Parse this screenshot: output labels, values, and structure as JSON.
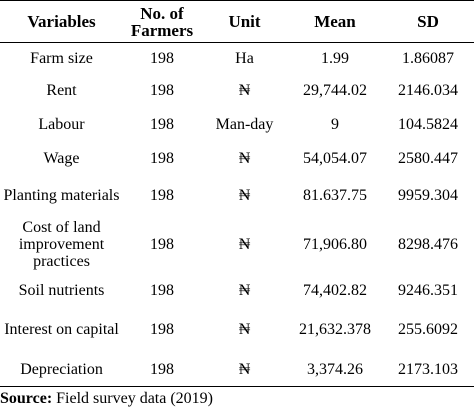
{
  "table": {
    "headers": [
      "Variables",
      "No. of Farmers",
      "Unit",
      "Mean",
      "SD"
    ],
    "rows": [
      {
        "variable": "Farm size",
        "farmers": "198",
        "unit": "Ha",
        "mean": "1.99",
        "sd": "1.86087"
      },
      {
        "variable": "Rent",
        "farmers": "198",
        "unit": "₦",
        "mean": "29,744.02",
        "sd": "2146.034"
      },
      {
        "variable": "Labour",
        "farmers": "198",
        "unit": "Man-day",
        "mean": "9",
        "sd": "104.5824"
      },
      {
        "variable": "Wage",
        "farmers": "198",
        "unit": "₦",
        "mean": "54,054.07",
        "sd": "2580.447"
      },
      {
        "variable": "Planting materials",
        "farmers": "198",
        "unit": "₦",
        "mean": "81.637.75",
        "sd": "9959.304"
      },
      {
        "variable": "Cost of land improvement practices",
        "farmers": "198",
        "unit": "₦",
        "mean": "71,906.80",
        "sd": "8298.476"
      },
      {
        "variable": "Soil nutrients",
        "farmers": "198",
        "unit": "₦",
        "mean": "74,402.82",
        "sd": "9246.351"
      },
      {
        "variable": "Interest on capital",
        "farmers": "198",
        "unit": "₦",
        "mean": "21,632.378",
        "sd": "255.6092"
      },
      {
        "variable": "Depreciation",
        "farmers": "198",
        "unit": "₦",
        "mean": "3,374.26",
        "sd": "2173.103"
      }
    ]
  },
  "source": {
    "label": "Source:",
    "text": " Field survey data (2019)"
  }
}
